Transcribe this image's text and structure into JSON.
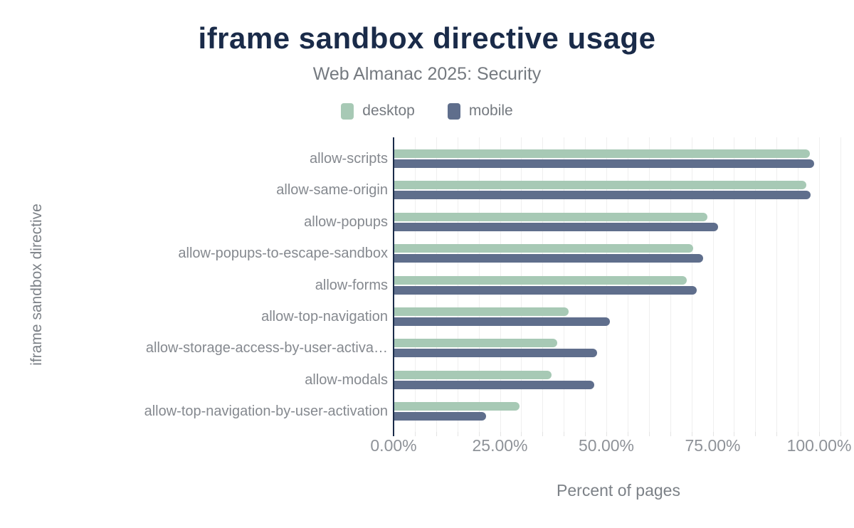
{
  "chart": {
    "title": "iframe sandbox directive usage",
    "subtitle": "Web Almanac 2025: Security",
    "x_axis_title": "Percent of pages",
    "y_axis_title": "iframe sandbox directive"
  },
  "legend": {
    "items": [
      {
        "label": "desktop",
        "color": "#a7c9b5"
      },
      {
        "label": "mobile",
        "color": "#5f6e8c"
      }
    ]
  },
  "chart_data": {
    "type": "bar",
    "orientation": "horizontal",
    "title": "iframe sandbox directive usage",
    "subtitle": "Web Almanac 2025: Security",
    "xlabel": "Percent of pages",
    "ylabel": "iframe sandbox directive",
    "legend_position": "top",
    "grid": true,
    "grid_step_percent": 5,
    "xlim": [
      0,
      105
    ],
    "x_tick_values": [
      0,
      25,
      50,
      75,
      100
    ],
    "x_tick_labels": [
      "0.00%",
      "25.00%",
      "50.00%",
      "75.00%",
      "100.00%"
    ],
    "categories": [
      "allow-scripts",
      "allow-same-origin",
      "allow-popups",
      "allow-popups-to-escape-sandbox",
      "allow-forms",
      "allow-top-navigation",
      "allow-storage-access-by-user-activa…",
      "allow-modals",
      "allow-top-navigation-by-user-activation"
    ],
    "series": [
      {
        "name": "desktop",
        "color": "#a7c9b5",
        "values": [
          97.7,
          96.8,
          73.5,
          70.2,
          68.8,
          40.9,
          38.3,
          37.0,
          29.4
        ]
      },
      {
        "name": "mobile",
        "color": "#5f6e8c",
        "values": [
          98.6,
          97.9,
          76.1,
          72.5,
          71.1,
          50.7,
          47.7,
          47.0,
          21.6
        ]
      }
    ]
  }
}
